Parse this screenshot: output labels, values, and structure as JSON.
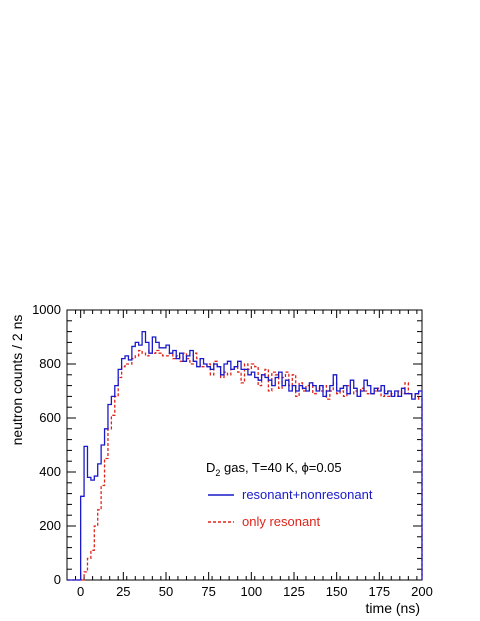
{
  "chart_data": {
    "type": "line",
    "style": "step histogram",
    "xlabel": "time (ns)",
    "ylabel": "neutron counts / 2 ns",
    "xlim": [
      -8,
      200
    ],
    "ylim": [
      0,
      1000
    ],
    "x_ticks": [
      0,
      25,
      50,
      75,
      100,
      125,
      150,
      175,
      200
    ],
    "y_ticks": [
      0,
      200,
      400,
      600,
      800,
      1000
    ],
    "bin_width": 2,
    "grid": false,
    "annotation": {
      "base": "D",
      "sub": "2",
      "rest": " gas, T=40 K, ",
      "phi": "ϕ",
      "tail": "=0.05"
    },
    "legend_placement": "center-right inside plot",
    "colors": {
      "resonant_nonresonant": "#1a1acc",
      "resonant": "#e0241a"
    },
    "series": [
      {
        "name": "resonant+nonresonant",
        "line_style": "solid",
        "bin_starts": [
          -8,
          -6,
          -4,
          -2,
          0,
          2,
          4,
          6,
          8,
          10,
          12,
          14,
          16,
          18,
          20,
          22,
          24,
          26,
          28,
          30,
          32,
          34,
          36,
          38,
          40,
          42,
          44,
          46,
          48,
          50,
          52,
          54,
          56,
          58,
          60,
          62,
          64,
          66,
          68,
          70,
          72,
          74,
          76,
          78,
          80,
          82,
          84,
          86,
          88,
          90,
          92,
          94,
          96,
          98,
          100,
          102,
          104,
          106,
          108,
          110,
          112,
          114,
          116,
          118,
          120,
          122,
          124,
          126,
          128,
          130,
          132,
          134,
          136,
          138,
          140,
          142,
          144,
          146,
          148,
          150,
          152,
          154,
          156,
          158,
          160,
          162,
          164,
          166,
          168,
          170,
          172,
          174,
          176,
          178,
          180,
          182,
          184,
          186,
          188,
          190,
          192,
          194,
          196,
          198
        ],
        "values": [
          0,
          0,
          0,
          0,
          310,
          495,
          380,
          370,
          385,
          430,
          500,
          560,
          650,
          680,
          720,
          780,
          820,
          830,
          815,
          865,
          880,
          870,
          920,
          880,
          840,
          900,
          880,
          860,
          860,
          870,
          840,
          850,
          820,
          840,
          810,
          830,
          850,
          810,
          790,
          820,
          800,
          790,
          780,
          800,
          790,
          760,
          800,
          810,
          780,
          790,
          810,
          780,
          780,
          760,
          770,
          750,
          740,
          760,
          750,
          740,
          720,
          750,
          770,
          720,
          740,
          700,
          720,
          700,
          720,
          710,
          700,
          730,
          720,
          700,
          720,
          680,
          700,
          720,
          760,
          700,
          710,
          720,
          690,
          740,
          710,
          680,
          700,
          740,
          720,
          690,
          710,
          700,
          720,
          690,
          700,
          680,
          700,
          680,
          710,
          690,
          690,
          670,
          690,
          700
        ]
      },
      {
        "name": "only resonant",
        "line_style": "dashed",
        "bin_starts": [
          -8,
          -6,
          -4,
          -2,
          0,
          2,
          4,
          6,
          8,
          10,
          12,
          14,
          16,
          18,
          20,
          22,
          24,
          26,
          28,
          30,
          32,
          34,
          36,
          38,
          40,
          42,
          44,
          46,
          48,
          50,
          52,
          54,
          56,
          58,
          60,
          62,
          64,
          66,
          68,
          70,
          72,
          74,
          76,
          78,
          80,
          82,
          84,
          86,
          88,
          90,
          92,
          94,
          96,
          98,
          100,
          102,
          104,
          106,
          108,
          110,
          112,
          114,
          116,
          118,
          120,
          122,
          124,
          126,
          128,
          130,
          132,
          134,
          136,
          138,
          140,
          142,
          144,
          146,
          148,
          150,
          152,
          154,
          156,
          158,
          160,
          162,
          164,
          166,
          168,
          170,
          172,
          174,
          176,
          178,
          180,
          182,
          184,
          186,
          188,
          190,
          192,
          194,
          196,
          198
        ],
        "values": [
          0,
          0,
          0,
          0,
          0,
          30,
          80,
          110,
          200,
          260,
          350,
          450,
          560,
          610,
          680,
          750,
          790,
          800,
          800,
          820,
          830,
          850,
          840,
          830,
          850,
          840,
          850,
          840,
          830,
          830,
          840,
          820,
          830,
          810,
          840,
          820,
          800,
          840,
          820,
          790,
          790,
          800,
          760,
          810,
          790,
          750,
          770,
          760,
          780,
          790,
          770,
          730,
          800,
          780,
          800,
          790,
          720,
          760,
          780,
          700,
          770,
          760,
          710,
          750,
          770,
          720,
          760,
          680,
          730,
          700,
          720,
          730,
          690,
          710,
          700,
          720,
          670,
          700,
          730,
          690,
          700,
          680,
          720,
          690,
          700,
          680,
          710,
          700,
          690,
          690,
          700,
          710,
          680,
          700,
          680,
          690,
          680,
          700,
          690,
          730,
          690,
          680,
          690,
          670
        ]
      }
    ]
  }
}
